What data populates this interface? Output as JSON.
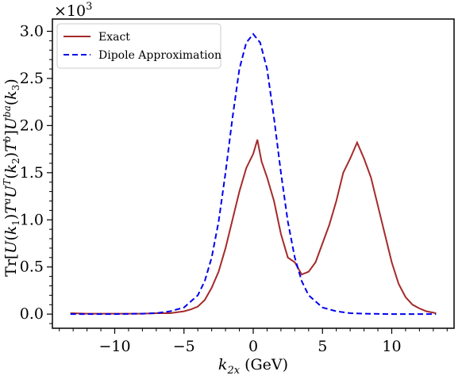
{
  "chart_data": {
    "type": "line",
    "xlabel": "k_2x (GeV)",
    "ylabel": "Tr[U(k1)T^a U^T(k2) T^b] U^ba(k3)",
    "y_multiplier": "×10^3",
    "xlim": [
      -14.5,
      14.5
    ],
    "ylim": [
      -0.15,
      3.13
    ],
    "x_ticks": [
      -10,
      -5,
      0,
      5,
      10
    ],
    "x_tick_labels": [
      "−10",
      "−5",
      "0",
      "5",
      "10"
    ],
    "y_ticks": [
      0.0,
      0.5,
      1.0,
      1.5,
      2.0,
      2.5,
      3.0
    ],
    "y_tick_labels": [
      "0.0",
      "0.5",
      "1.0",
      "1.5",
      "2.0",
      "2.5",
      "3.0"
    ],
    "grid": false,
    "legend_position": "top-left",
    "series": [
      {
        "name": "Exact",
        "color": "#a52a2a",
        "style": "solid",
        "x": [
          -13.2,
          -12.0,
          -11.0,
          -10.0,
          -9.0,
          -8.0,
          -7.0,
          -6.0,
          -5.0,
          -4.5,
          -4.0,
          -3.5,
          -3.0,
          -2.5,
          -2.0,
          -1.5,
          -1.0,
          -0.5,
          0.0,
          0.3,
          0.6,
          1.0,
          1.5,
          2.0,
          2.5,
          3.0,
          3.5,
          4.0,
          4.5,
          5.0,
          5.5,
          6.0,
          6.5,
          7.0,
          7.5,
          8.0,
          8.5,
          9.0,
          9.5,
          10.0,
          10.5,
          11.0,
          11.5,
          12.0,
          12.5,
          13.2
        ],
        "y": [
          0.01,
          0.005,
          0.005,
          0.005,
          0.005,
          0.005,
          0.01,
          0.01,
          0.03,
          0.05,
          0.08,
          0.15,
          0.28,
          0.45,
          0.7,
          1.0,
          1.3,
          1.55,
          1.7,
          1.85,
          1.62,
          1.45,
          1.2,
          0.85,
          0.6,
          0.55,
          0.42,
          0.45,
          0.55,
          0.75,
          0.95,
          1.2,
          1.5,
          1.65,
          1.82,
          1.65,
          1.45,
          1.15,
          0.85,
          0.55,
          0.32,
          0.18,
          0.1,
          0.06,
          0.03,
          0.01
        ]
      },
      {
        "name": "Dipole Approximation",
        "color": "#0000ee",
        "style": "dashed",
        "x": [
          -13.2,
          -12.0,
          -10.0,
          -8.0,
          -7.0,
          -6.0,
          -5.0,
          -4.0,
          -3.5,
          -3.0,
          -2.5,
          -2.0,
          -1.5,
          -1.0,
          -0.5,
          0.0,
          0.5,
          1.0,
          1.5,
          2.0,
          2.5,
          3.0,
          3.5,
          4.0,
          5.0,
          6.0,
          7.0,
          8.0,
          10.0,
          12.0,
          13.2
        ],
        "y": [
          0.0,
          0.0,
          0.0,
          0.005,
          0.01,
          0.03,
          0.07,
          0.2,
          0.35,
          0.6,
          0.98,
          1.5,
          2.08,
          2.6,
          2.88,
          2.97,
          2.88,
          2.6,
          2.08,
          1.5,
          0.98,
          0.6,
          0.35,
          0.2,
          0.07,
          0.03,
          0.01,
          0.005,
          0.0,
          0.0,
          0.0
        ]
      }
    ]
  }
}
